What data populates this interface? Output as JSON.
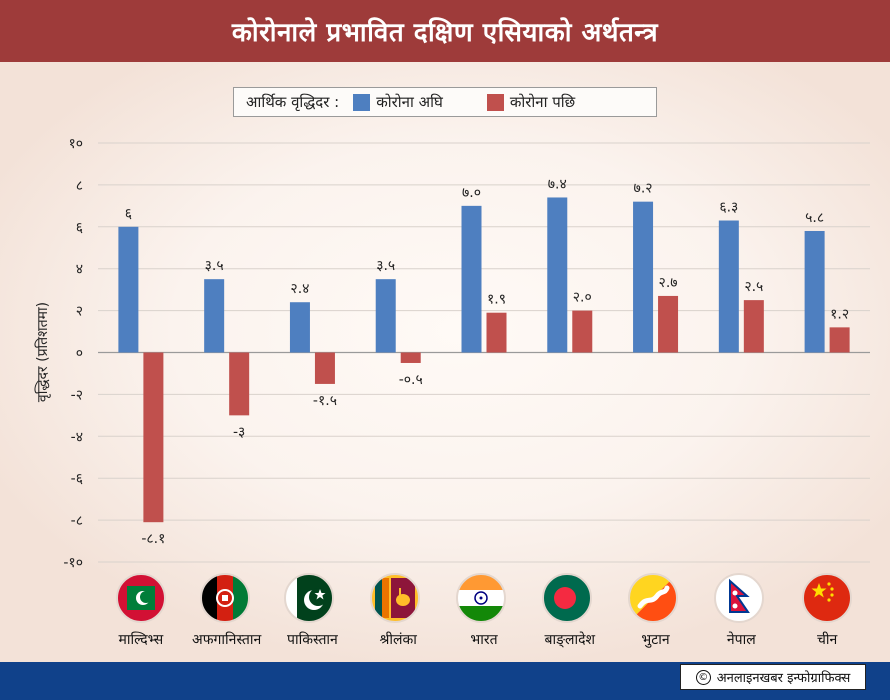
{
  "header": {
    "title": "कोरोनाले प्रभावित दक्षिण एसियाको अर्थतन्त्र"
  },
  "legend": {
    "title": "आर्थिक वृद्धिदर :",
    "items": [
      {
        "label": "कोरोना अघि",
        "color": "#4e7fc0"
      },
      {
        "label": "कोरोना पछि",
        "color": "#c0504d"
      }
    ]
  },
  "chart_data": {
    "type": "bar",
    "ylabel": "वृद्धिदर (प्रतिशतमा)",
    "ylim": [
      -10,
      10
    ],
    "yticks": [
      10,
      8,
      6,
      4,
      2,
      0,
      -2,
      -4,
      -6,
      -8,
      -10
    ],
    "ytick_labels": [
      "१०",
      "८",
      "६",
      "४",
      "२",
      "०",
      "-२",
      "-४",
      "-६",
      "-८",
      "-१०"
    ],
    "grid": true,
    "legend_position": "top-center",
    "categories": [
      "माल्दिभ्स",
      "अफगानिस्तान",
      "पाकिस्तान",
      "श्रीलंका",
      "भारत",
      "बाङ्लादेश",
      "भुटान",
      "नेपाल",
      "चीन"
    ],
    "series": [
      {
        "name": "कोरोना अघि",
        "color": "#4e7fc0",
        "values": [
          6,
          3.5,
          2.4,
          3.5,
          7.0,
          7.4,
          7.2,
          6.3,
          5.8
        ],
        "labels": [
          "६",
          "३.५",
          "२.४",
          "३.५",
          "७.०",
          "७.४",
          "७.२",
          "६.३",
          "५.८"
        ]
      },
      {
        "name": "कोरोना पछि",
        "color": "#c0504d",
        "values": [
          -8.1,
          -3,
          -1.5,
          -0.5,
          1.9,
          2.0,
          2.7,
          2.5,
          1.2
        ],
        "labels": [
          "-८.१",
          "-३",
          "-१.५",
          "-०.५",
          "१.९",
          "२.०",
          "२.७",
          "२.५",
          "१.२"
        ]
      }
    ]
  },
  "flags": [
    "maldives-flag-icon",
    "afghanistan-flag-icon",
    "pakistan-flag-icon",
    "srilanka-flag-icon",
    "india-flag-icon",
    "bangladesh-flag-icon",
    "bhutan-flag-icon",
    "nepal-flag-icon",
    "china-flag-icon"
  ],
  "credit": {
    "symbol": "©",
    "text": "अनलाइनखबर इन्फोग्राफिक्स"
  }
}
